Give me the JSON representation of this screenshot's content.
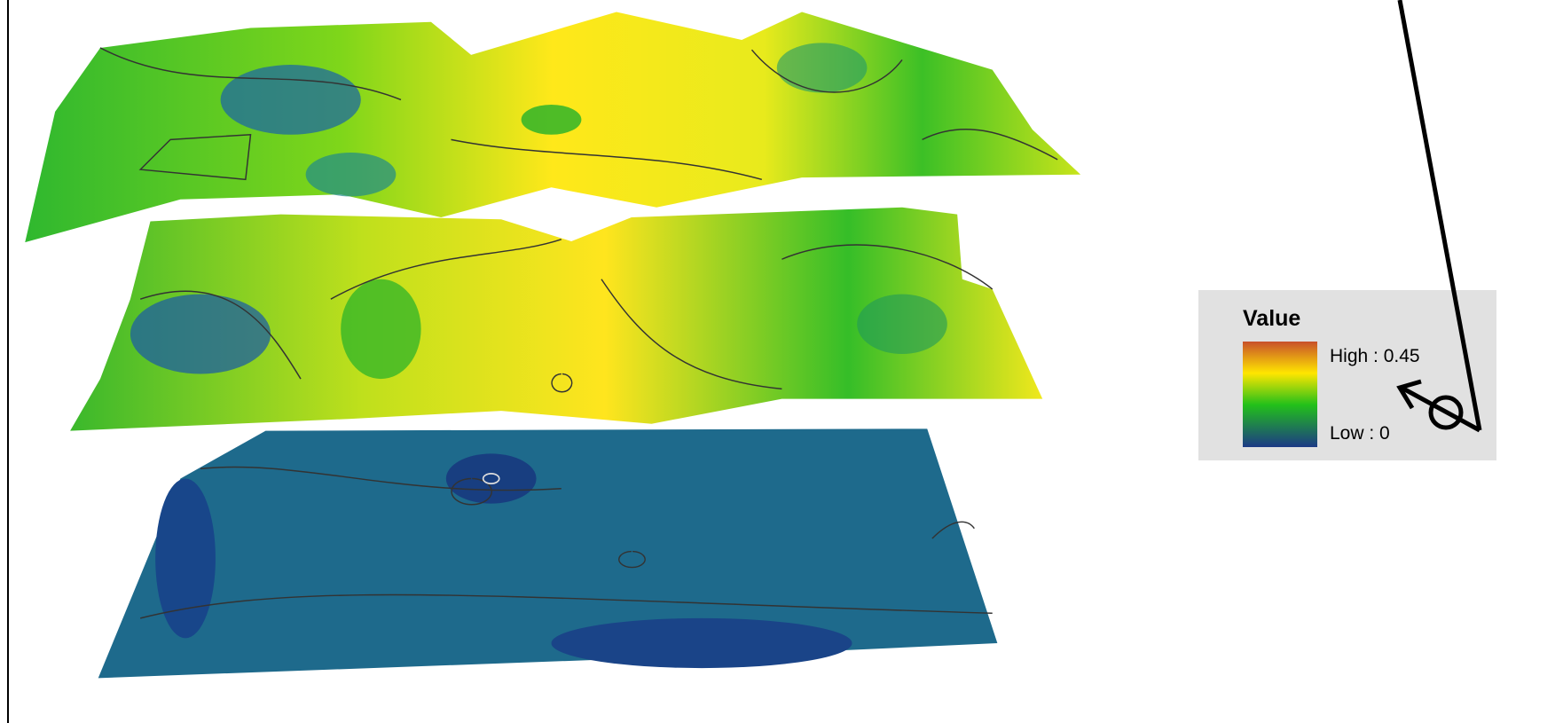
{
  "legend": {
    "title": "Value",
    "high_label": "High : 0.45",
    "low_label": "Low : 0"
  }
}
